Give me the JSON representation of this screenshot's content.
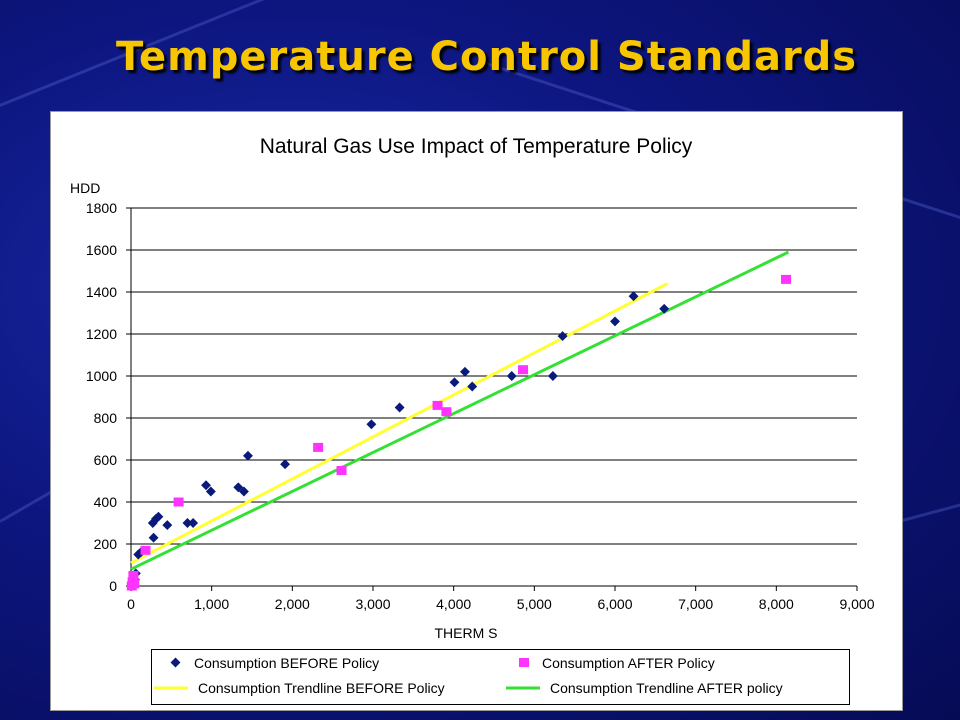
{
  "slide": {
    "title": "Temperature Control Standards"
  },
  "colors": {
    "title": "#f7c600",
    "before_points": "#0a1a7a",
    "after_points": "#ff33ff",
    "before_trend": "#ffff33",
    "after_trend": "#33e033"
  },
  "chart_data": {
    "type": "scatter",
    "title": "Natural Gas Use Impact of Temperature Policy",
    "xlabel": "THERM S",
    "ylabel": "HDD",
    "xlim": [
      0,
      9000
    ],
    "ylim": [
      0,
      1800
    ],
    "x_ticks": [
      "0",
      "1,000",
      "2,000",
      "3,000",
      "4,000",
      "5,000",
      "6,000",
      "7,000",
      "8,000",
      "9,000"
    ],
    "y_ticks": [
      "0",
      "200",
      "400",
      "600",
      "800",
      "1000",
      "1200",
      "1400",
      "1600",
      "1800"
    ],
    "grid": "horizontal",
    "legend_position": "bottom",
    "series": [
      {
        "name": "Consumption BEFORE Policy",
        "kind": "points",
        "marker": "diamond",
        "points": [
          [
            20,
            10
          ],
          [
            40,
            20
          ],
          [
            50,
            30
          ],
          [
            60,
            60
          ],
          [
            90,
            150
          ],
          [
            120,
            160
          ],
          [
            280,
            230
          ],
          [
            270,
            300
          ],
          [
            310,
            320
          ],
          [
            340,
            330
          ],
          [
            450,
            290
          ],
          [
            700,
            300
          ],
          [
            770,
            300
          ],
          [
            930,
            480
          ],
          [
            990,
            450
          ],
          [
            1330,
            470
          ],
          [
            1400,
            450
          ],
          [
            1450,
            620
          ],
          [
            1910,
            580
          ],
          [
            2980,
            770
          ],
          [
            3330,
            850
          ],
          [
            4010,
            970
          ],
          [
            4140,
            1020
          ],
          [
            4230,
            950
          ],
          [
            4720,
            1000
          ],
          [
            5230,
            1000
          ],
          [
            5350,
            1190
          ],
          [
            6000,
            1260
          ],
          [
            6230,
            1380
          ],
          [
            6610,
            1320
          ]
        ]
      },
      {
        "name": "Consumption AFTER Policy",
        "kind": "points",
        "marker": "square",
        "points": [
          [
            10,
            0
          ],
          [
            20,
            20
          ],
          [
            30,
            50
          ],
          [
            40,
            10
          ],
          [
            180,
            170
          ],
          [
            590,
            400
          ],
          [
            2320,
            660
          ],
          [
            2610,
            550
          ],
          [
            3800,
            860
          ],
          [
            3910,
            830
          ],
          [
            4860,
            1030
          ],
          [
            8120,
            1460
          ]
        ]
      },
      {
        "name": "Consumption Trendline BEFORE Policy",
        "kind": "line",
        "points": [
          [
            0,
            110
          ],
          [
            6650,
            1440
          ]
        ]
      },
      {
        "name": "Consumption Trendline AFTER policy",
        "kind": "line",
        "points": [
          [
            0,
            80
          ],
          [
            8150,
            1590
          ]
        ]
      }
    ]
  }
}
